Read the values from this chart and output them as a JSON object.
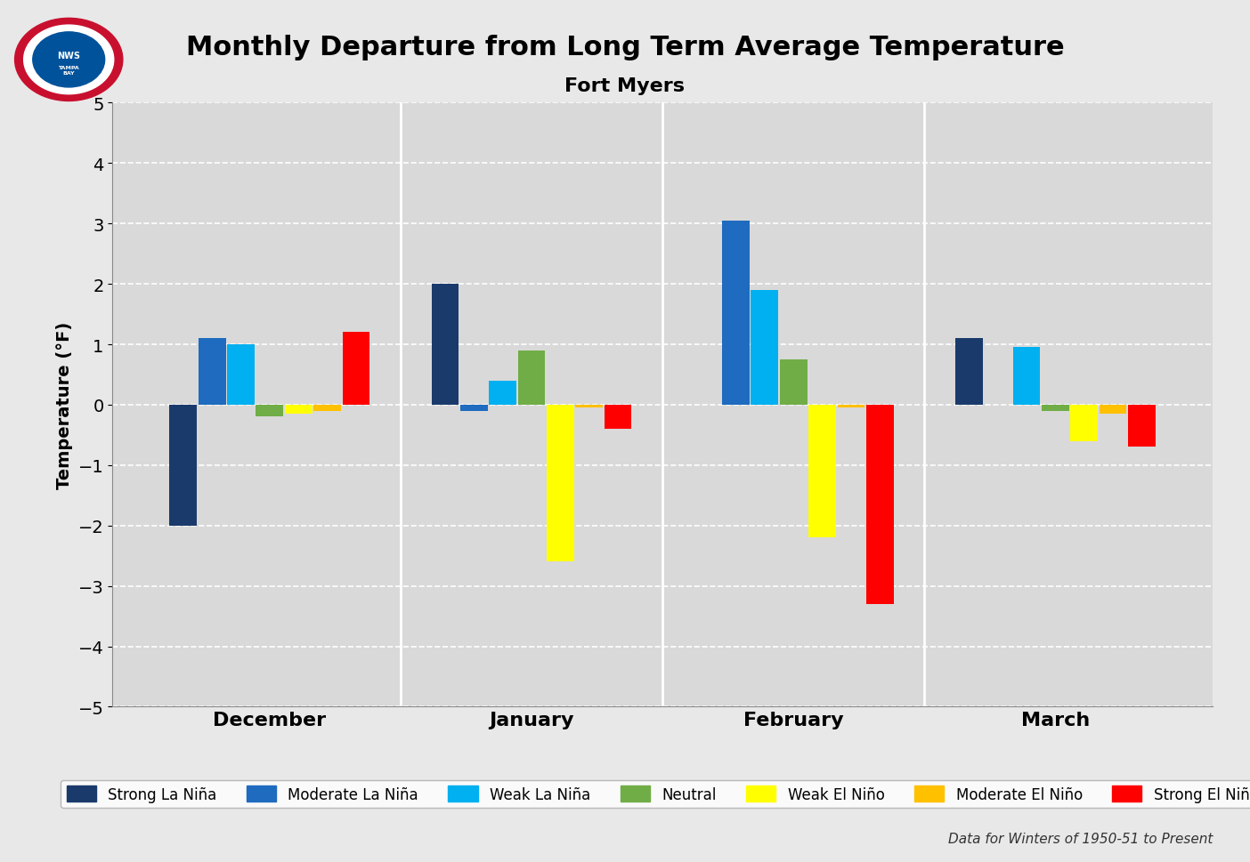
{
  "title": "Monthly Departure from Long Term Average Temperature",
  "subtitle": "Fort Myers",
  "ylabel": "Temperature (°F)",
  "footnote": "Data for Winters of 1950-51 to Present",
  "months": [
    "December",
    "January",
    "February",
    "March"
  ],
  "categories": [
    "Strong La Niña",
    "Moderate La Niña",
    "Weak La Niña",
    "Neutral",
    "Weak El Niño",
    "Moderate El Niño",
    "Strong El Niño"
  ],
  "colors": [
    "#1a3a6b",
    "#1e6bbf",
    "#00b0f0",
    "#70ad47",
    "#ffff00",
    "#ffc000",
    "#ff0000"
  ],
  "ylim": [
    -5,
    5
  ],
  "yticks": [
    -5,
    -4,
    -3,
    -2,
    -1,
    0,
    1,
    2,
    3,
    4,
    5
  ],
  "data": {
    "December": [
      -2.0,
      1.1,
      1.0,
      -0.2,
      -0.15,
      -0.1,
      1.2
    ],
    "January": [
      2.0,
      -0.1,
      0.4,
      0.9,
      -2.6,
      -0.05,
      -0.4
    ],
    "February": [
      0.0,
      3.05,
      1.9,
      0.75,
      -2.2,
      -0.05,
      -3.3
    ],
    "March": [
      1.1,
      0.0,
      0.95,
      -0.1,
      -0.6,
      -0.15,
      -0.7
    ]
  },
  "background_color": "#e8e8e8",
  "plot_bg_color": "#d9d9d9",
  "grid_color": "#ffffff"
}
